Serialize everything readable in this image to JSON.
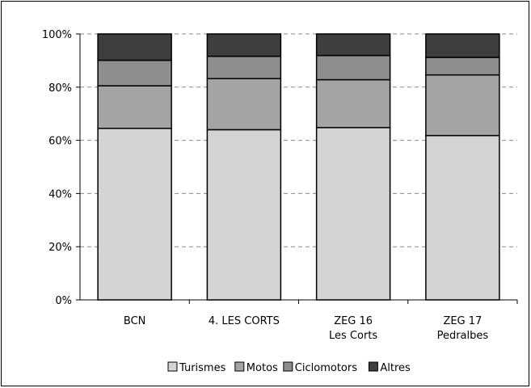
{
  "chart_data": {
    "type": "bar",
    "stacked": "percent",
    "categories": [
      [
        "BCN"
      ],
      [
        "4. LES CORTS"
      ],
      [
        "ZEG 16",
        "Les Corts"
      ],
      [
        "ZEG 17",
        "Pedralbes"
      ]
    ],
    "series": [
      {
        "name": "Turismes",
        "color": "#d4d4d4",
        "values": [
          64.5,
          64.0,
          64.8,
          61.8
        ]
      },
      {
        "name": "Motos",
        "color": "#a4a4a4",
        "values": [
          16.0,
          19.2,
          18.0,
          22.8
        ]
      },
      {
        "name": "Ciclomotors",
        "color": "#8e8e8e",
        "values": [
          9.6,
          8.4,
          9.1,
          6.6
        ]
      },
      {
        "name": "Altres",
        "color": "#3e3e3e",
        "values": [
          9.9,
          8.4,
          8.1,
          8.8
        ]
      }
    ],
    "ylim": [
      0,
      100
    ],
    "yticks": [
      "0%",
      "20%",
      "40%",
      "60%",
      "80%",
      "100%"
    ],
    "grid": true,
    "legend_position": "bottom"
  }
}
